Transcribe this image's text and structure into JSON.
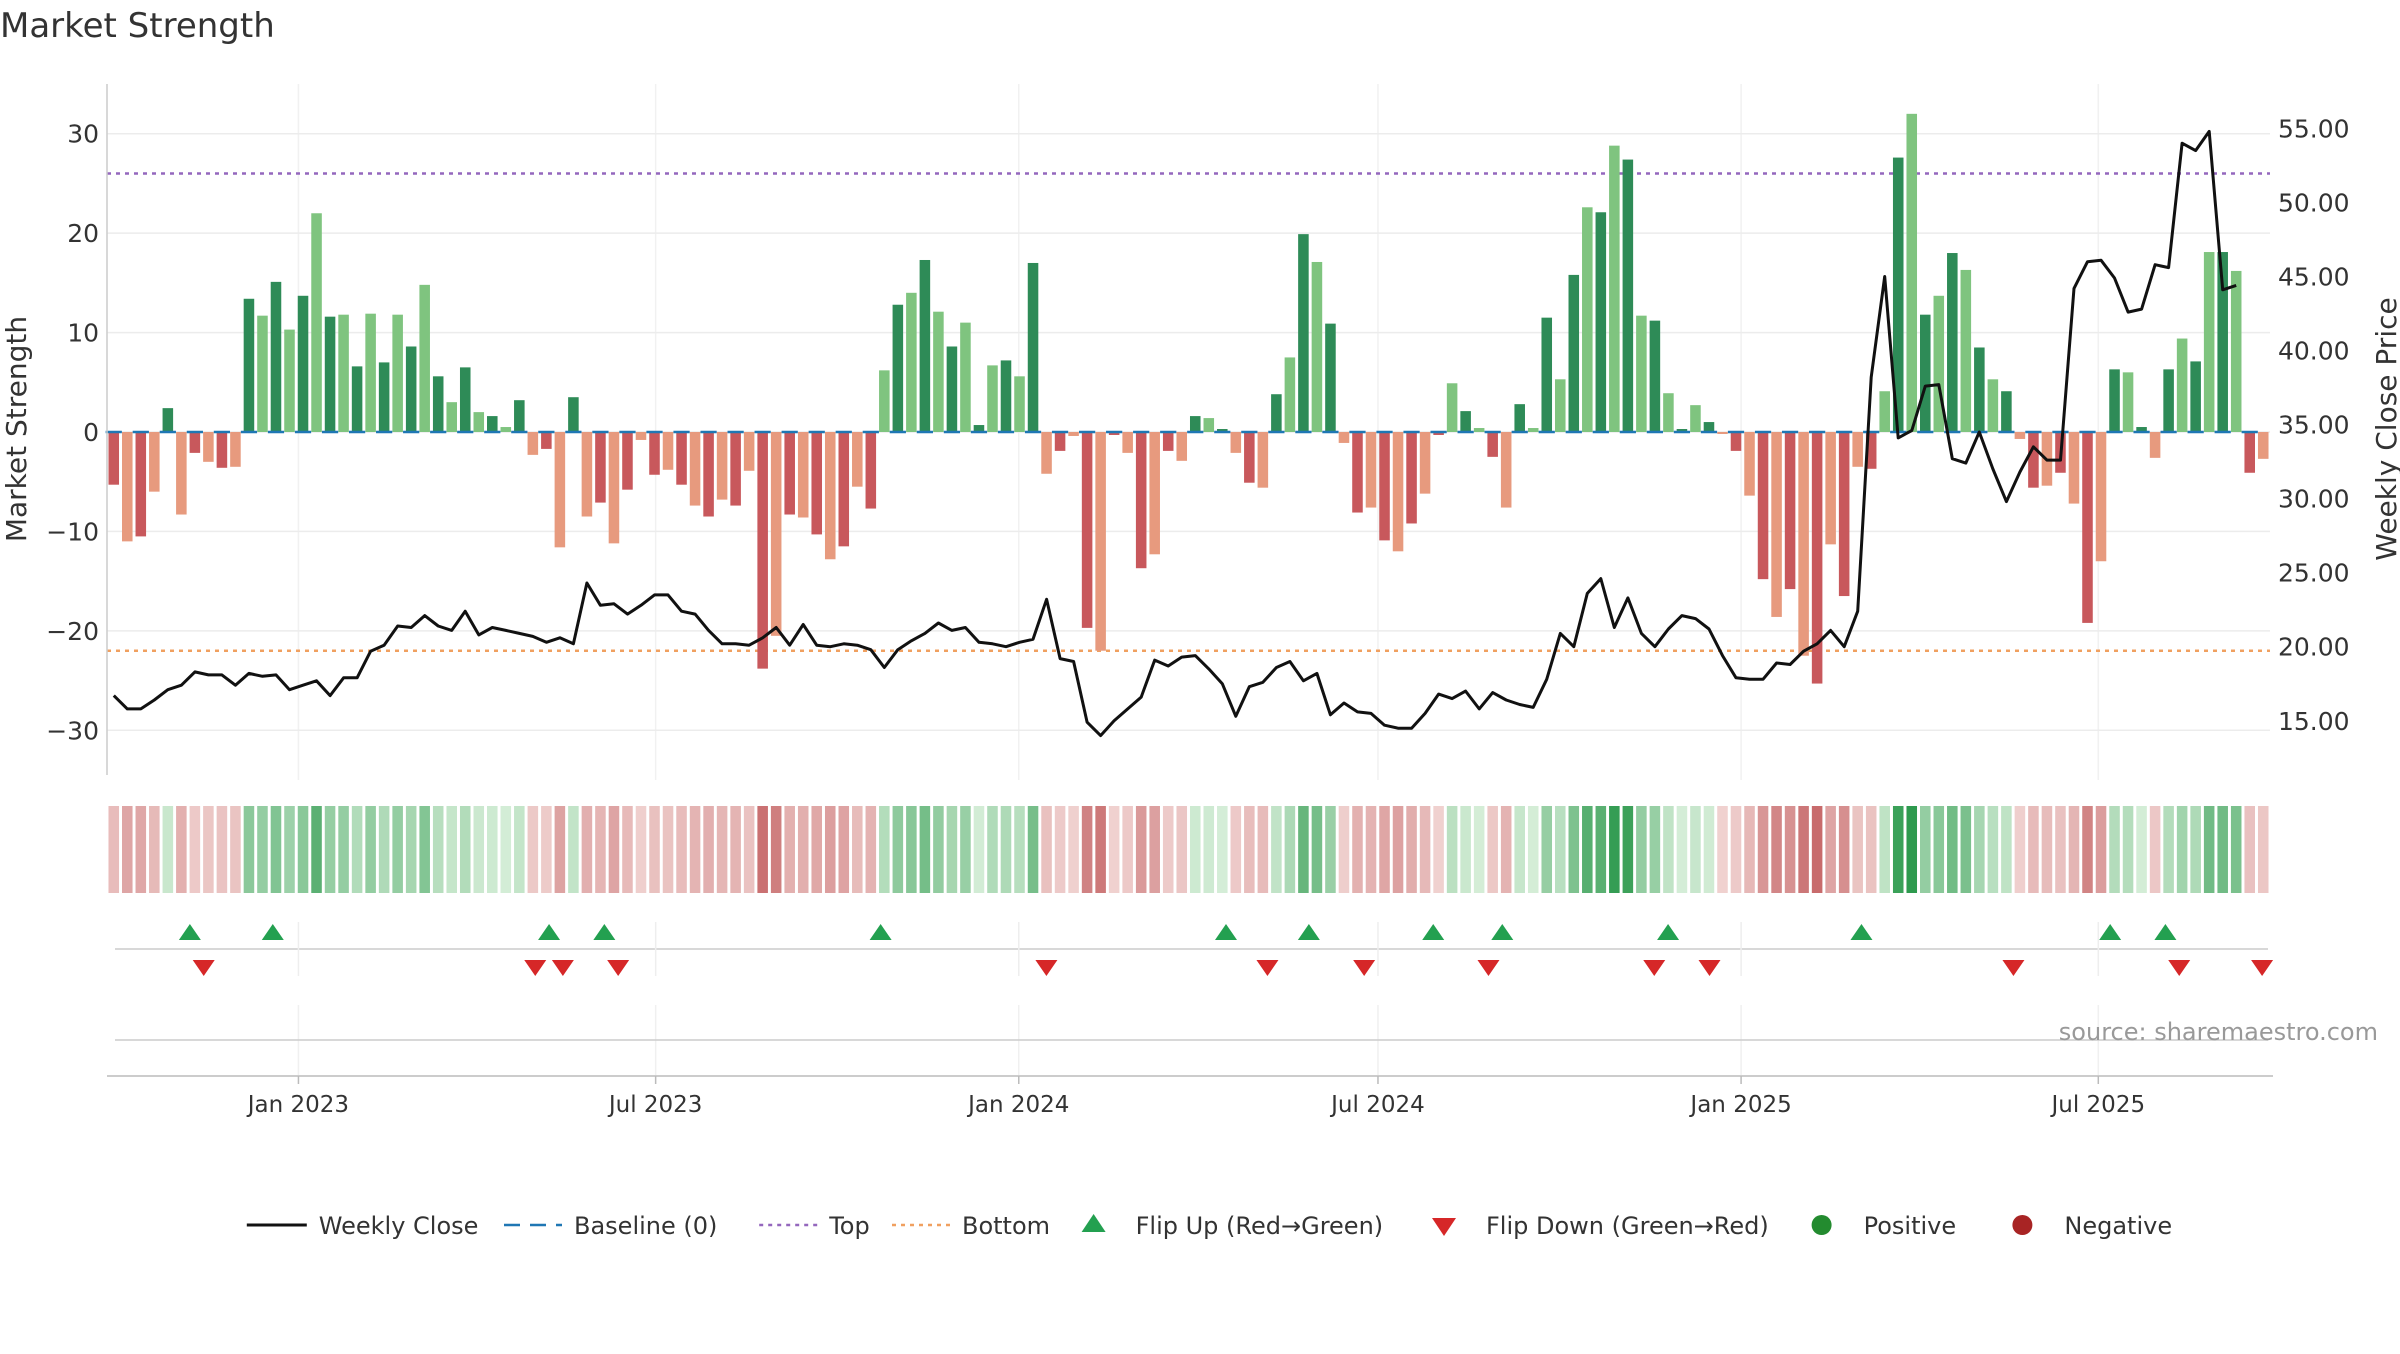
{
  "chart_data": {
    "type": "bar",
    "title": "Market Strength",
    "ylabel_left": "Market Strength",
    "ylabel_right": "Weekly Close Price",
    "ylim_left": [
      -35,
      35
    ],
    "ylim_right": [
      11.0,
      58.0
    ],
    "yticks_left": [
      30,
      20,
      10,
      0,
      -10,
      -20,
      -30
    ],
    "yticks_left_labels": [
      "30",
      "20",
      "10",
      "0",
      "−10",
      "−20",
      "−30"
    ],
    "yticks_right": [
      55,
      50,
      45,
      40,
      35,
      30,
      25,
      20,
      15
    ],
    "yticks_right_labels": [
      "55.00",
      "50.00",
      "45.00",
      "40.00",
      "35.00",
      "30.00",
      "25.00",
      "20.00",
      "15.00"
    ],
    "x_start": "2022-09-26",
    "x_end": "2025-09-26",
    "x_ticks": [
      {
        "date": "2023-01-01",
        "label": "Jan 2023"
      },
      {
        "date": "2023-07-01",
        "label": "Jul 2023"
      },
      {
        "date": "2024-01-01",
        "label": "Jan 2024"
      },
      {
        "date": "2024-07-01",
        "label": "Jul 2024"
      },
      {
        "date": "2025-01-01",
        "label": "Jan 2025"
      },
      {
        "date": "2025-07-01",
        "label": "Jul 2025"
      }
    ],
    "top_level": 26,
    "bottom_level": -22,
    "strength": [
      -5.3,
      -11,
      -10.5,
      -6,
      2.4,
      -8.3,
      -2.1,
      -3,
      -3.6,
      -3.5,
      13.4,
      11.7,
      15.1,
      10.3,
      13.7,
      22,
      11.6,
      11.8,
      6.6,
      11.9,
      7,
      11.8,
      8.6,
      14.8,
      5.6,
      3,
      6.5,
      2,
      1.6,
      0.5,
      3.2,
      -2.3,
      -1.7,
      -11.6,
      3.5,
      -8.5,
      -7.1,
      -11.2,
      -5.8,
      -0.8,
      -4.3,
      -3.8,
      -5.3,
      -7.4,
      -8.5,
      -6.8,
      -7.4,
      -3.9,
      -23.8,
      -20.5,
      -8.3,
      -8.6,
      -10.3,
      -12.8,
      -11.5,
      -5.5,
      -7.7,
      6.2,
      12.8,
      14,
      17.3,
      12.1,
      8.6,
      11,
      0.7,
      6.7,
      7.2,
      5.6,
      17,
      -4.2,
      -1.9,
      -0.4,
      -19.7,
      -22,
      -0.3,
      -2.1,
      -13.7,
      -12.3,
      -1.9,
      -2.9,
      1.6,
      1.4,
      0.3,
      -2.1,
      -5.1,
      -5.6,
      3.8,
      7.5,
      19.9,
      17.1,
      10.9,
      -1.1,
      -8.1,
      -7.6,
      -10.9,
      -12,
      -9.2,
      -6.2,
      -0.3,
      4.9,
      2.1,
      0.4,
      -2.5,
      -7.6,
      2.8,
      0.4,
      11.5,
      5.3,
      15.8,
      22.6,
      22.1,
      28.8,
      27.4,
      11.7,
      11.2,
      3.9,
      0.3,
      2.7,
      1,
      -0.2,
      -1.9,
      -6.4,
      -14.8,
      -18.6,
      -15.8,
      -22.5,
      -25.3,
      -11.3,
      -16.5,
      -3.5,
      -3.7,
      4.1,
      27.6,
      32,
      11.8,
      13.7,
      18,
      16.3,
      8.5,
      5.3,
      4.1,
      -0.7,
      -5.6,
      -5.4,
      -4.1,
      -7.2,
      -19.2,
      -13,
      6.3,
      6,
      0.5,
      -2.6,
      6.3,
      9.4,
      7.1,
      18.1,
      18.1,
      16.2,
      -4.1,
      -2.7
    ],
    "close": [
      16.7,
      15.8,
      15.8,
      16.4,
      17.1,
      17.4,
      18.3,
      18.1,
      18.1,
      17.4,
      18.2,
      18,
      18.1,
      17.1,
      17.4,
      17.7,
      16.7,
      17.9,
      17.9,
      19.7,
      20.1,
      21.4,
      21.3,
      22.1,
      21.4,
      21.1,
      22.4,
      20.8,
      21.3,
      21.1,
      20.9,
      20.7,
      20.3,
      20.6,
      20.2,
      24.3,
      22.8,
      22.9,
      22.2,
      22.8,
      23.5,
      23.5,
      22.4,
      22.2,
      21.1,
      20.2,
      20.2,
      20.1,
      20.6,
      21.3,
      20.1,
      21.5,
      20.1,
      20,
      20.2,
      20.1,
      19.8,
      18.6,
      19.8,
      20.4,
      20.9,
      21.6,
      21.1,
      21.3,
      20.3,
      20.2,
      20,
      20.3,
      20.5,
      23.2,
      19.2,
      19,
      14.9,
      14,
      15,
      15.8,
      16.6,
      19.1,
      18.7,
      19.3,
      19.4,
      18.5,
      17.5,
      15.3,
      17.3,
      17.6,
      18.6,
      19,
      17.7,
      18.2,
      15.4,
      16.2,
      15.6,
      15.5,
      14.7,
      14.5,
      14.5,
      15.5,
      16.8,
      16.5,
      17,
      15.8,
      16.9,
      16.4,
      16.1,
      15.9,
      17.8,
      20.9,
      20,
      23.6,
      24.6,
      21.3,
      23.3,
      20.9,
      20,
      21.2,
      22.1,
      21.9,
      21.2,
      19.4,
      17.9,
      17.8,
      17.8,
      18.9,
      18.8,
      19.7,
      20.2,
      21.1,
      20,
      22.4,
      38.2,
      45,
      34.1,
      34.6,
      37.6,
      37.7,
      32.7,
      32.4,
      34.5,
      32,
      29.8,
      31.8,
      33.5,
      32.6,
      32.6,
      44.2,
      46,
      46.1,
      44.9,
      42.6,
      42.8,
      45.8,
      45.6,
      54,
      53.5,
      54.8,
      44.1,
      44.4
    ],
    "flips_up": [
      "2022-11-07",
      "2022-12-19",
      "2023-05-08",
      "2023-06-05",
      "2023-10-23",
      "2024-04-15",
      "2024-05-27",
      "2024-07-29",
      "2024-09-02",
      "2024-11-25",
      "2025-03-03",
      "2025-07-07",
      "2025-08-04"
    ],
    "flips_down": [
      "2022-11-14",
      "2023-05-01",
      "2023-05-15",
      "2023-06-12",
      "2024-01-15",
      "2024-05-06",
      "2024-06-24",
      "2024-08-26",
      "2024-11-18",
      "2024-12-16",
      "2025-05-19",
      "2025-08-11",
      "2025-09-22"
    ],
    "legend": [
      {
        "label": "Weekly Close",
        "kind": "line",
        "color": "#111111"
      },
      {
        "label": "Baseline (0)",
        "kind": "dash",
        "color": "#1f77b4"
      },
      {
        "label": "Top",
        "kind": "dot",
        "color": "#9467bd"
      },
      {
        "label": "Bottom",
        "kind": "dot",
        "color": "#f0a060"
      },
      {
        "label": "Flip Up (Red→Green)",
        "kind": "tri-up",
        "color": "#23a050"
      },
      {
        "label": "Flip Down (Green→Red)",
        "kind": "tri-down",
        "color": "#d62728"
      },
      {
        "label": "Positive",
        "kind": "circle",
        "color": "#238b2f"
      },
      {
        "label": "Negative",
        "kind": "circle",
        "color": "#a82424"
      }
    ],
    "source_text": "source: sharemaestro.com"
  },
  "colors": {
    "pos_strong": "#2e8b57",
    "pos_light": "#7fc47f",
    "neg_strong": "#c8585c",
    "neg_light": "#e79a7e",
    "price_line": "#111111",
    "top_line": "#9467bd",
    "bottom_line": "#f0a060",
    "baseline": "#1f77b4",
    "flip_up": "#23a050",
    "flip_down": "#d62728"
  }
}
